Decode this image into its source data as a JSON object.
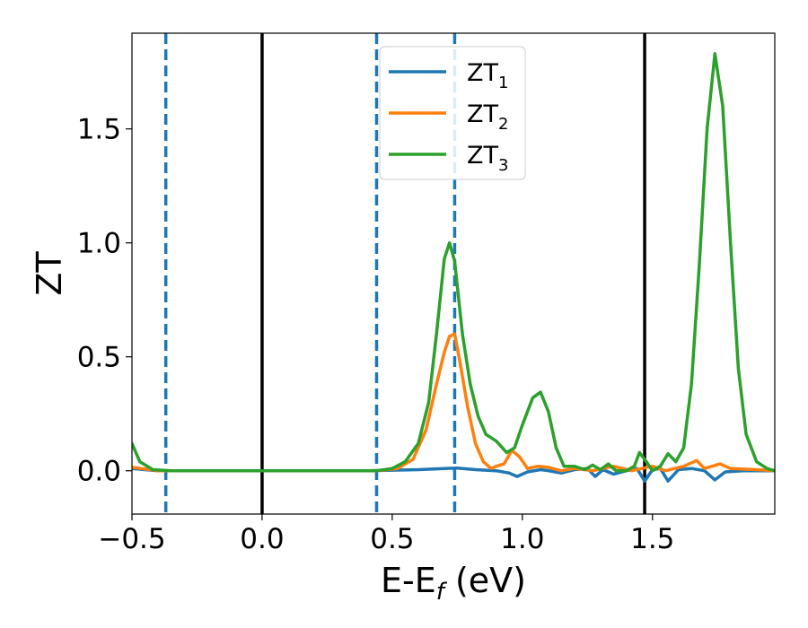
{
  "chart_data": {
    "type": "line",
    "xlabel": "E-E",
    "xlabel_sub": "f",
    "xlabel_unit": " (eV)",
    "ylabel": "ZT",
    "xlim": [
      -0.5,
      1.97
    ],
    "ylim": [
      -0.19,
      1.92
    ],
    "xticks": [
      -0.5,
      0.0,
      0.5,
      1.0,
      1.5
    ],
    "xtick_labels": [
      "−0.5",
      "0.0",
      "0.5",
      "1.0",
      "1.5"
    ],
    "yticks": [
      0.0,
      0.5,
      1.0,
      1.5
    ],
    "ytick_labels": [
      "0.0",
      "0.5",
      "1.0",
      "1.5"
    ],
    "grid": false,
    "legend_placement": "top-center",
    "vertical_lines": [
      {
        "x": -0.37,
        "style": "dashed",
        "color": "#1f77b4"
      },
      {
        "x": 0.0,
        "style": "solid",
        "color": "#000000"
      },
      {
        "x": 0.44,
        "style": "dashed",
        "color": "#1f77b4"
      },
      {
        "x": 0.74,
        "style": "dashed",
        "color": "#1f77b4"
      },
      {
        "x": 1.47,
        "style": "solid",
        "color": "#000000"
      }
    ],
    "series": [
      {
        "name": "ZT",
        "sub": "1",
        "color": "#1f77b4",
        "points": [
          [
            -0.5,
            0.01
          ],
          [
            -0.4,
            0.0
          ],
          [
            0.0,
            0.0
          ],
          [
            0.4,
            0.0
          ],
          [
            0.6,
            0.005
          ],
          [
            0.7,
            0.01
          ],
          [
            0.75,
            0.012
          ],
          [
            0.82,
            0.005
          ],
          [
            0.9,
            0.0
          ],
          [
            0.95,
            -0.01
          ],
          [
            0.98,
            -0.025
          ],
          [
            1.02,
            -0.005
          ],
          [
            1.07,
            0.005
          ],
          [
            1.1,
            0.0
          ],
          [
            1.15,
            -0.01
          ],
          [
            1.2,
            0.005
          ],
          [
            1.25,
            0.01
          ],
          [
            1.28,
            -0.025
          ],
          [
            1.31,
            0.005
          ],
          [
            1.35,
            -0.015
          ],
          [
            1.4,
            0.0
          ],
          [
            1.44,
            0.01
          ],
          [
            1.47,
            -0.045
          ],
          [
            1.5,
            0.005
          ],
          [
            1.53,
            0.01
          ],
          [
            1.56,
            -0.045
          ],
          [
            1.6,
            0.005
          ],
          [
            1.65,
            0.01
          ],
          [
            1.7,
            0.0
          ],
          [
            1.74,
            -0.04
          ],
          [
            1.78,
            -0.005
          ],
          [
            1.85,
            0.0
          ],
          [
            1.97,
            0.0
          ]
        ]
      },
      {
        "name": "ZT",
        "sub": "2",
        "color": "#ff7f0e",
        "points": [
          [
            -0.5,
            0.015
          ],
          [
            -0.4,
            0.0
          ],
          [
            0.0,
            0.0
          ],
          [
            0.44,
            0.0
          ],
          [
            0.52,
            0.01
          ],
          [
            0.58,
            0.05
          ],
          [
            0.63,
            0.18
          ],
          [
            0.67,
            0.38
          ],
          [
            0.7,
            0.52
          ],
          [
            0.72,
            0.59
          ],
          [
            0.74,
            0.6
          ],
          [
            0.76,
            0.48
          ],
          [
            0.79,
            0.28
          ],
          [
            0.82,
            0.12
          ],
          [
            0.85,
            0.04
          ],
          [
            0.88,
            0.01
          ],
          [
            0.9,
            0.02
          ],
          [
            0.93,
            0.03
          ],
          [
            0.96,
            0.09
          ],
          [
            0.99,
            0.06
          ],
          [
            1.02,
            0.01
          ],
          [
            1.06,
            0.02
          ],
          [
            1.1,
            0.015
          ],
          [
            1.15,
            0.0
          ],
          [
            1.2,
            0.01
          ],
          [
            1.27,
            0.0
          ],
          [
            1.35,
            0.02
          ],
          [
            1.42,
            0.0
          ],
          [
            1.5,
            0.02
          ],
          [
            1.55,
            0.0
          ],
          [
            1.62,
            0.02
          ],
          [
            1.67,
            0.045
          ],
          [
            1.7,
            0.01
          ],
          [
            1.76,
            0.03
          ],
          [
            1.8,
            0.01
          ],
          [
            1.9,
            0.005
          ],
          [
            1.97,
            0.0
          ]
        ]
      },
      {
        "name": "ZT",
        "sub": "3",
        "color": "#2ca02c",
        "points": [
          [
            -0.5,
            0.12
          ],
          [
            -0.47,
            0.04
          ],
          [
            -0.42,
            0.005
          ],
          [
            -0.35,
            0.0
          ],
          [
            0.0,
            0.0
          ],
          [
            0.44,
            0.0
          ],
          [
            0.5,
            0.01
          ],
          [
            0.55,
            0.04
          ],
          [
            0.6,
            0.12
          ],
          [
            0.64,
            0.3
          ],
          [
            0.67,
            0.6
          ],
          [
            0.7,
            0.93
          ],
          [
            0.72,
            1.0
          ],
          [
            0.74,
            0.92
          ],
          [
            0.77,
            0.6
          ],
          [
            0.8,
            0.38
          ],
          [
            0.83,
            0.24
          ],
          [
            0.86,
            0.16
          ],
          [
            0.9,
            0.13
          ],
          [
            0.94,
            0.08
          ],
          [
            0.97,
            0.1
          ],
          [
            1.0,
            0.2
          ],
          [
            1.04,
            0.32
          ],
          [
            1.07,
            0.345
          ],
          [
            1.1,
            0.26
          ],
          [
            1.13,
            0.1
          ],
          [
            1.16,
            0.02
          ],
          [
            1.2,
            0.02
          ],
          [
            1.24,
            0.005
          ],
          [
            1.27,
            0.025
          ],
          [
            1.3,
            0.005
          ],
          [
            1.33,
            0.03
          ],
          [
            1.36,
            0.0
          ],
          [
            1.4,
            0.0
          ],
          [
            1.43,
            0.02
          ],
          [
            1.45,
            0.08
          ],
          [
            1.47,
            0.05
          ],
          [
            1.5,
            0.0
          ],
          [
            1.53,
            0.02
          ],
          [
            1.56,
            0.075
          ],
          [
            1.59,
            0.04
          ],
          [
            1.62,
            0.1
          ],
          [
            1.65,
            0.38
          ],
          [
            1.68,
            0.9
          ],
          [
            1.71,
            1.5
          ],
          [
            1.74,
            1.83
          ],
          [
            1.77,
            1.6
          ],
          [
            1.8,
            1.0
          ],
          [
            1.83,
            0.45
          ],
          [
            1.86,
            0.16
          ],
          [
            1.9,
            0.04
          ],
          [
            1.94,
            0.01
          ],
          [
            1.97,
            0.0
          ]
        ]
      }
    ]
  }
}
